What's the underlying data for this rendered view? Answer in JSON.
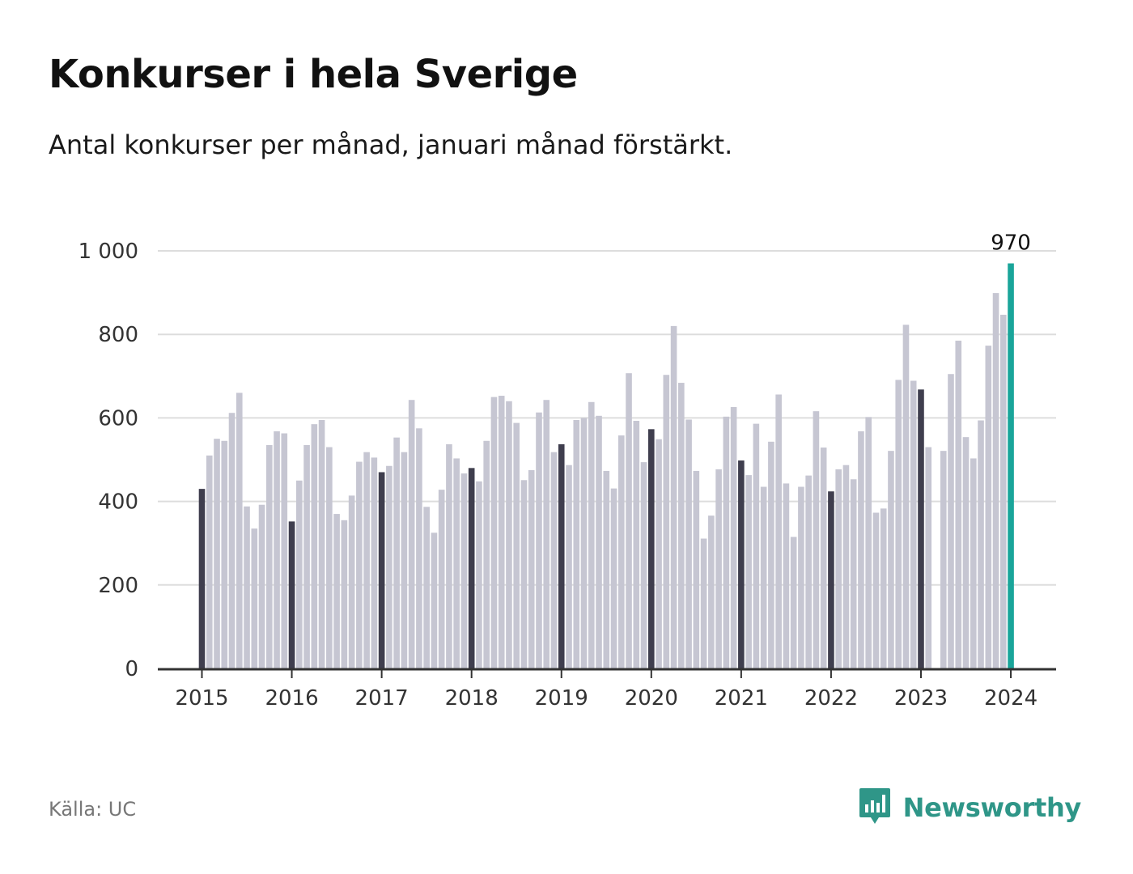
{
  "title": "Konkurser i hela Sverige",
  "subtitle": "Antal konkurser per månad, januari månad förstärkt.",
  "source": "Källa: UC",
  "brand": {
    "name": "Newsworthy",
    "icon": "bar-chart-logo-icon"
  },
  "colors": {
    "bar": "#c6c6d2",
    "january_bar": "#3f3e4e",
    "latest_bar": "#1aa59a",
    "grid": "#dddddd",
    "axis": "#333333",
    "brand": "#2f9688"
  },
  "chart_data": {
    "type": "bar",
    "x_tick_labels": [
      "2015",
      "2016",
      "2017",
      "2018",
      "2019",
      "2020",
      "2021",
      "2022",
      "2023",
      "2024"
    ],
    "y_tick_labels": [
      "0",
      "200",
      "400",
      "600",
      "800",
      "1 000"
    ],
    "ylim": [
      0,
      1000
    ],
    "y_ticks": [
      0,
      200,
      400,
      600,
      800,
      1000
    ],
    "grid": true,
    "highlight": "January bars darker; latest month highlighted with label",
    "latest_value_label": "970",
    "series": [
      {
        "start": "2015-01",
        "values": [
          430,
          510,
          550,
          545,
          612,
          660,
          388,
          335,
          392,
          535,
          568,
          563,
          352,
          450,
          535,
          585,
          595,
          530,
          370,
          355,
          414,
          495,
          518,
          505,
          470,
          485,
          553,
          518,
          643,
          575,
          387,
          325,
          428,
          537,
          503,
          467,
          480,
          448,
          545,
          650,
          653,
          640,
          588,
          451,
          475,
          613,
          643,
          518,
          537,
          487,
          595,
          600,
          638,
          605,
          473,
          431,
          558,
          707,
          593,
          494,
          573,
          549,
          703,
          820,
          684,
          596,
          473,
          311,
          366,
          477,
          603,
          626,
          498,
          463,
          586,
          435,
          543,
          656,
          443,
          315,
          435,
          462,
          616,
          529,
          424,
          477,
          487,
          453,
          568,
          602,
          373,
          383,
          521,
          691,
          823,
          689,
          668,
          530,
          0,
          521,
          705,
          785,
          554,
          503,
          594,
          773,
          899,
          847,
          970
        ]
      }
    ]
  }
}
